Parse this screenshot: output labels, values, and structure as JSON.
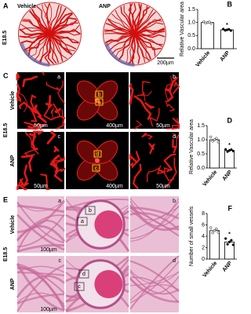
{
  "panel_a": {
    "label": "A",
    "columns": [
      "Vehicle",
      "ANP"
    ],
    "stage": "E18.5",
    "scale_bar": "200µm"
  },
  "panel_c": {
    "label": "C",
    "rows": [
      "Vehicle",
      "ANP"
    ],
    "stage": "E18.5",
    "scale_bars": [
      "50µm",
      "400µm",
      "50µm",
      "50µm",
      "400µm",
      "50µm"
    ],
    "image_labels": [
      "a",
      "b",
      "c",
      "d"
    ],
    "box_labels": [
      "b",
      "a",
      "d",
      "c"
    ]
  },
  "panel_e": {
    "label": "E",
    "rows": [
      "Vehicle",
      "ANP"
    ],
    "stage": "E18.5",
    "scale_bars": [
      "100µm",
      "100µm"
    ],
    "image_labels": [
      "a",
      "b",
      "c",
      "d"
    ],
    "box_labels": [
      "b",
      "a",
      "d",
      "c"
    ]
  },
  "chart_data": [
    {
      "type": "bar",
      "label": "B",
      "y_label": "Relative Vascular area",
      "categories": [
        "Vehicle",
        "ANP"
      ],
      "values": [
        1.0,
        0.72
      ],
      "points": [
        [
          1.03,
          0.98,
          1.0,
          1.02,
          0.97
        ],
        [
          0.75,
          0.7,
          0.72,
          0.74,
          0.69
        ]
      ],
      "annotation": "*",
      "color": "#ffffff",
      "ylim": [
        0,
        1.5
      ],
      "yticks": [
        {
          "value": 0,
          "label": "0.0"
        },
        {
          "value": 0.5,
          "label": "0.5"
        },
        {
          "value": 1,
          "label": "1.0"
        },
        {
          "value": 1.5,
          "label": "1.5"
        }
      ]
    },
    {
      "type": "bar",
      "label": "D",
      "y_label": "Relative Vascular area",
      "categories": [
        "Vehicle",
        "ANP"
      ],
      "values": [
        1.0,
        0.62
      ],
      "points": [
        [
          1.1,
          0.95,
          1.0,
          1.05,
          0.92
        ],
        [
          0.66,
          0.58,
          0.62,
          0.65,
          0.6
        ]
      ],
      "annotation": "*",
      "color": "#ffffff",
      "ylim": [
        0,
        1.5
      ],
      "yticks": [
        {
          "value": 0,
          "label": "0.0"
        },
        {
          "value": 0.5,
          "label": "0.5"
        },
        {
          "value": 1,
          "label": "1.0"
        },
        {
          "value": 1.5,
          "label": "1.5"
        }
      ]
    },
    {
      "type": "bar",
      "label": "F",
      "y_label": "Number of small vessels",
      "categories": [
        "Vehicle",
        "ANP"
      ],
      "values": [
        5,
        3
      ],
      "points": [
        [
          5.5,
          4.6,
          5,
          5.3,
          4.7
        ],
        [
          3.6,
          2.6,
          3,
          3.3,
          2.5
        ]
      ],
      "annotation": "*",
      "color": "#ffffff",
      "ylim": [
        0,
        8
      ],
      "yticks": [
        0,
        2,
        4,
        6,
        8
      ]
    }
  ]
}
